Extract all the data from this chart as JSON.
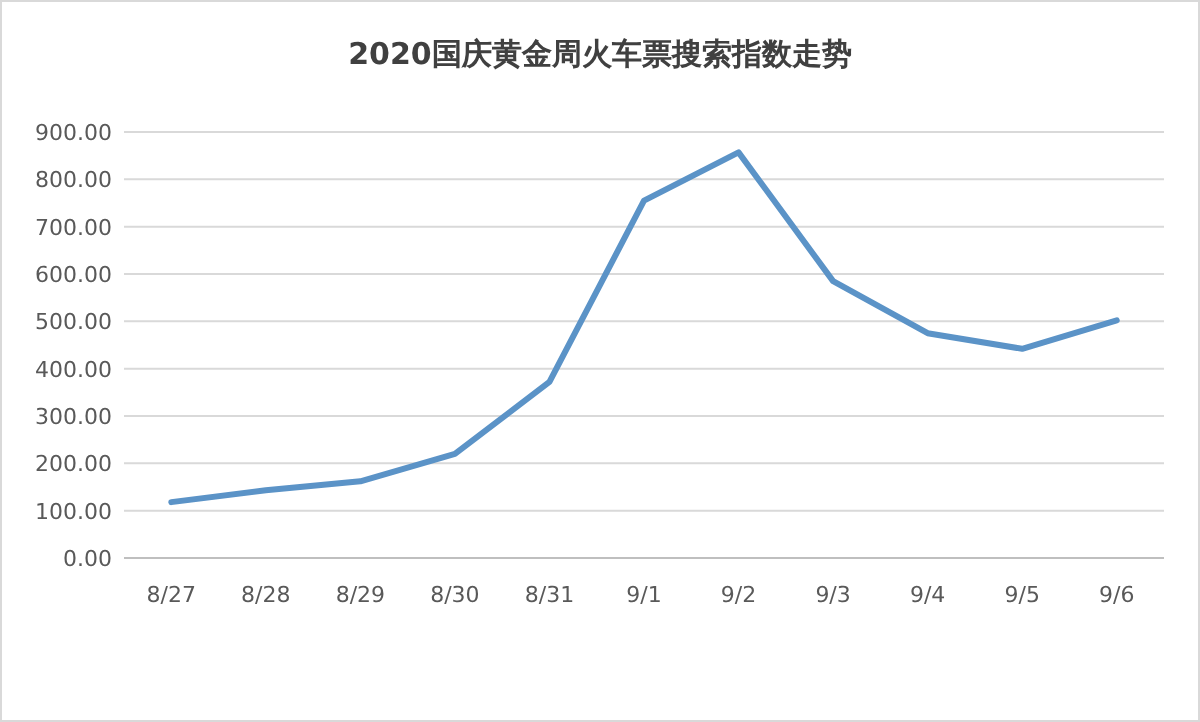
{
  "chart_data": {
    "type": "line",
    "title": "2020国庆黄金周火车票搜索指数走势",
    "categories": [
      "8/27",
      "8/28",
      "8/29",
      "8/30",
      "8/31",
      "9/1",
      "9/2",
      "9/3",
      "9/4",
      "9/5",
      "9/6"
    ],
    "values": [
      118,
      143,
      162,
      220,
      372,
      755,
      857,
      585,
      475,
      442,
      502
    ],
    "color": "#5b93c7",
    "ylim": [
      0,
      900
    ],
    "yticks": [
      {
        "value": 0,
        "label": "0.00"
      },
      {
        "value": 100,
        "label": "100.00"
      },
      {
        "value": 200,
        "label": "200.00"
      },
      {
        "value": 300,
        "label": "300.00"
      },
      {
        "value": 400,
        "label": "400.00"
      },
      {
        "value": 500,
        "label": "500.00"
      },
      {
        "value": 600,
        "label": "600.00"
      },
      {
        "value": 700,
        "label": "700.00"
      },
      {
        "value": 800,
        "label": "800.00"
      },
      {
        "value": 900,
        "label": "900.00"
      }
    ],
    "grid": "y",
    "marker": "none",
    "line_style": "solid"
  }
}
